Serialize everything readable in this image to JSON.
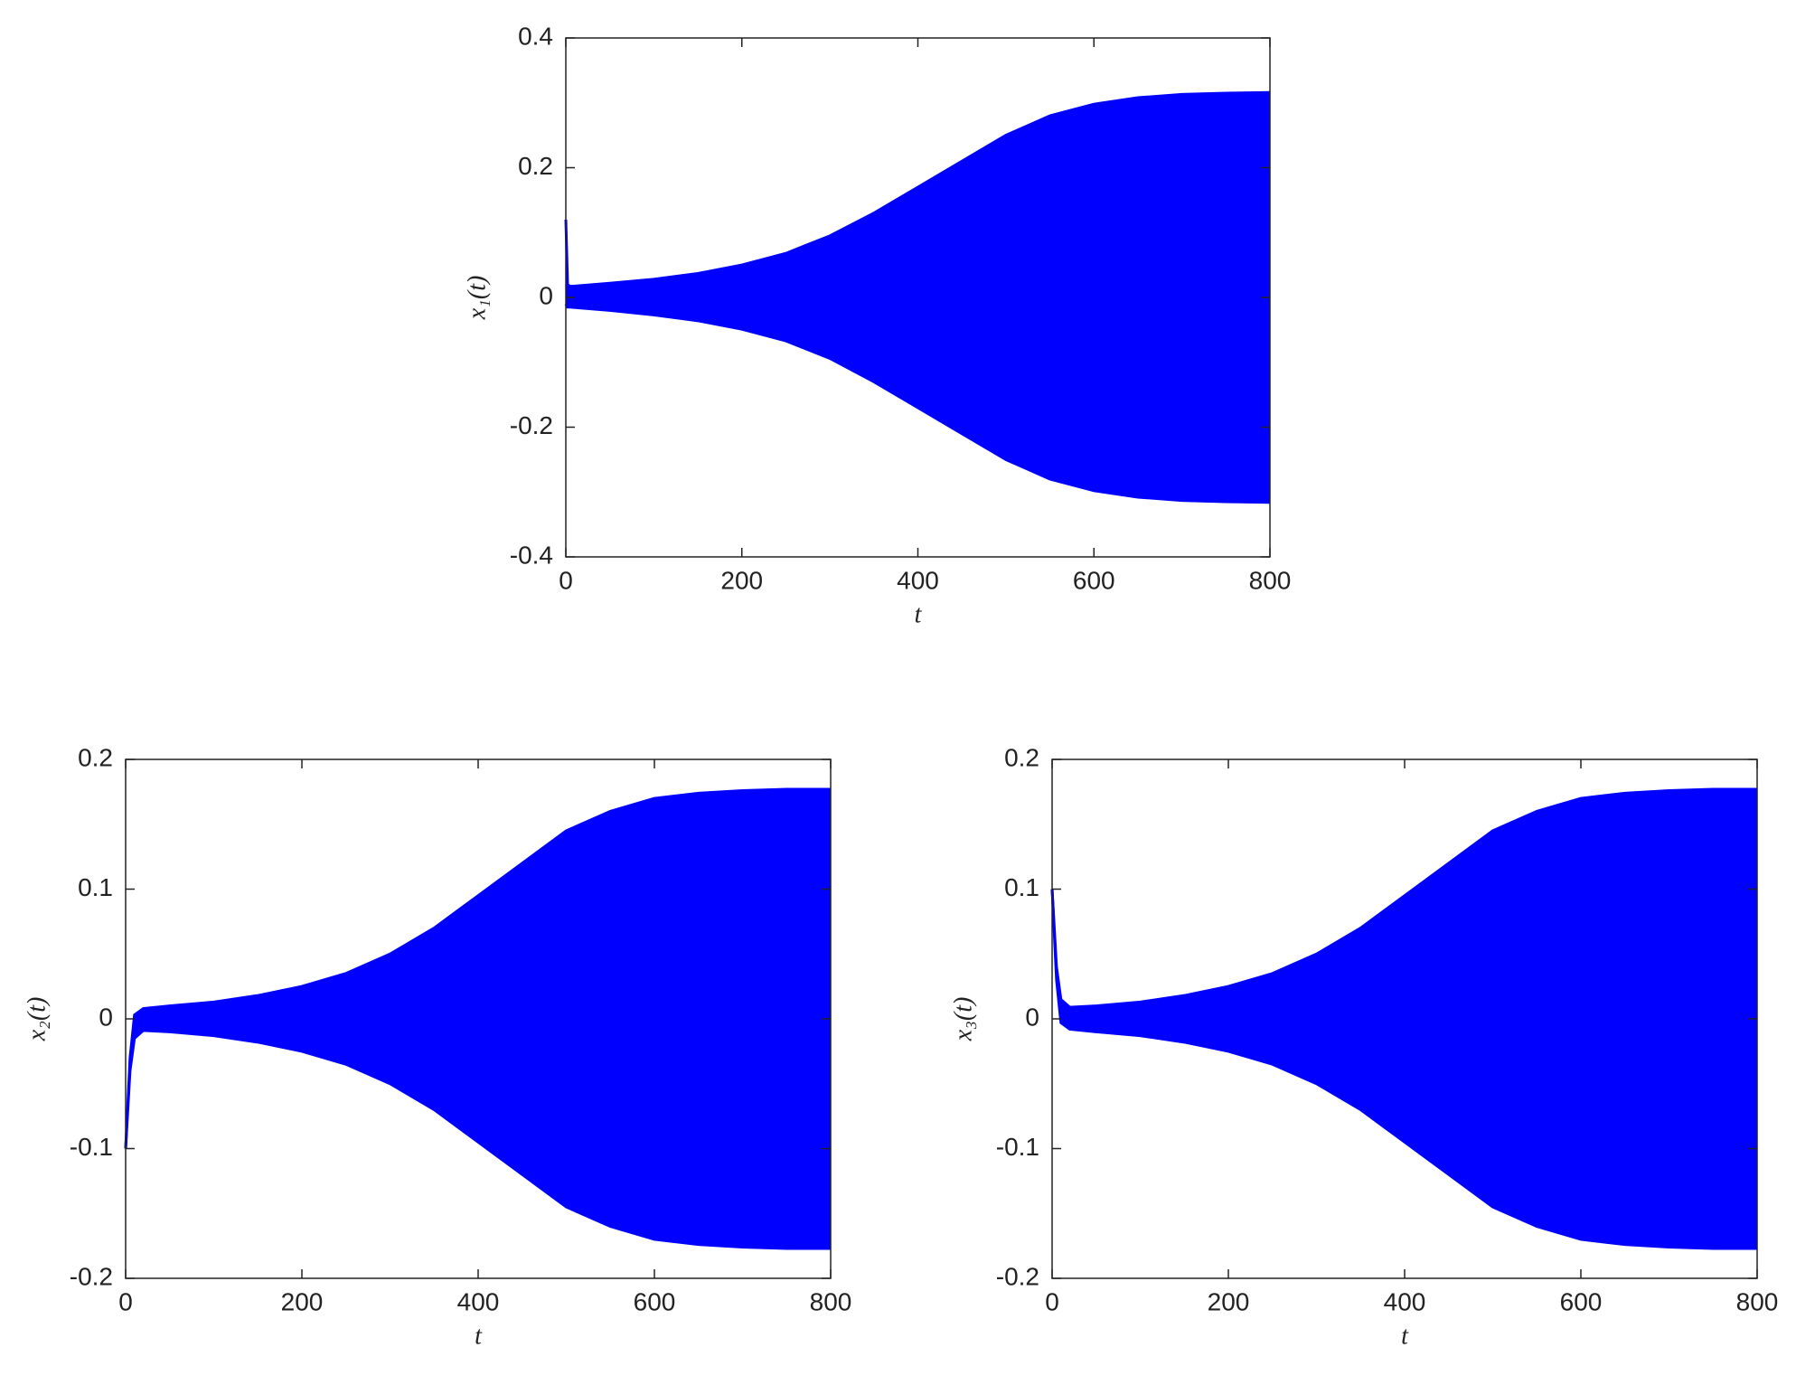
{
  "chart_data": [
    {
      "type": "line",
      "xlabel": "t",
      "ylabel": "x₁(t)",
      "x": [
        0,
        2,
        5,
        50,
        100,
        150,
        200,
        250,
        300,
        350,
        400,
        450,
        500,
        550,
        600,
        650,
        700,
        750,
        800
      ],
      "series": [
        {
          "color": "#0000ff",
          "values": [
            0.12,
            0.02,
            0.017,
            0.022,
            0.028,
            0.037,
            0.05,
            0.068,
            0.095,
            0.13,
            0.17,
            0.21,
            0.25,
            0.28,
            0.298,
            0.308,
            0.313,
            0.315,
            0.316
          ]
        },
        {
          "color": "#0000ff",
          "values": [
            -0.01,
            -0.015,
            -0.015,
            -0.02,
            -0.027,
            -0.036,
            -0.049,
            -0.067,
            -0.094,
            -0.13,
            -0.17,
            -0.21,
            -0.25,
            -0.28,
            -0.298,
            -0.308,
            -0.313,
            -0.315,
            -0.316
          ]
        }
      ],
      "fill_between": true,
      "xlim": [
        0,
        800
      ],
      "xticks": [
        0,
        200,
        400,
        600,
        800
      ],
      "ylim": [
        -0.4,
        0.4
      ],
      "yticks": [
        -0.4,
        -0.2,
        0,
        0.2,
        0.4
      ]
    },
    {
      "type": "line",
      "xlabel": "t",
      "ylabel": "x₂(t)",
      "x": [
        0,
        5,
        10,
        20,
        50,
        100,
        150,
        200,
        250,
        300,
        350,
        400,
        450,
        500,
        550,
        600,
        650,
        700,
        750,
        800
      ],
      "series": [
        {
          "color": "#0000ff",
          "values": [
            -0.1,
            -0.03,
            0.003,
            0.008,
            0.01,
            0.013,
            0.018,
            0.025,
            0.035,
            0.05,
            0.07,
            0.095,
            0.12,
            0.145,
            0.16,
            0.17,
            0.174,
            0.176,
            0.177,
            0.177
          ]
        },
        {
          "color": "#0000ff",
          "values": [
            -0.1,
            -0.04,
            -0.015,
            -0.009,
            -0.01,
            -0.013,
            -0.018,
            -0.025,
            -0.035,
            -0.05,
            -0.07,
            -0.095,
            -0.12,
            -0.145,
            -0.16,
            -0.17,
            -0.174,
            -0.176,
            -0.177,
            -0.177
          ]
        }
      ],
      "fill_between": true,
      "xlim": [
        0,
        800
      ],
      "xticks": [
        0,
        200,
        400,
        600,
        800
      ],
      "ylim": [
        -0.2,
        0.2
      ],
      "yticks": [
        -0.2,
        -0.1,
        0,
        0.1,
        0.2
      ]
    },
    {
      "type": "line",
      "xlabel": "t",
      "ylabel": "x₃(t)",
      "x": [
        0,
        5,
        10,
        20,
        50,
        100,
        150,
        200,
        250,
        300,
        350,
        400,
        450,
        500,
        550,
        600,
        650,
        700,
        750,
        800
      ],
      "series": [
        {
          "color": "#0000ff",
          "values": [
            0.1,
            0.04,
            0.015,
            0.009,
            0.01,
            0.013,
            0.018,
            0.025,
            0.035,
            0.05,
            0.07,
            0.095,
            0.12,
            0.145,
            0.16,
            0.17,
            0.174,
            0.176,
            0.177,
            0.177
          ]
        },
        {
          "color": "#0000ff",
          "values": [
            0.1,
            0.03,
            -0.003,
            -0.008,
            -0.01,
            -0.013,
            -0.018,
            -0.025,
            -0.035,
            -0.05,
            -0.07,
            -0.095,
            -0.12,
            -0.145,
            -0.16,
            -0.17,
            -0.174,
            -0.176,
            -0.177,
            -0.177
          ]
        }
      ],
      "fill_between": true,
      "xlim": [
        0,
        800
      ],
      "xticks": [
        0,
        200,
        400,
        600,
        800
      ],
      "ylim": [
        -0.2,
        0.2
      ],
      "yticks": [
        -0.2,
        -0.1,
        0,
        0.1,
        0.2
      ]
    }
  ]
}
